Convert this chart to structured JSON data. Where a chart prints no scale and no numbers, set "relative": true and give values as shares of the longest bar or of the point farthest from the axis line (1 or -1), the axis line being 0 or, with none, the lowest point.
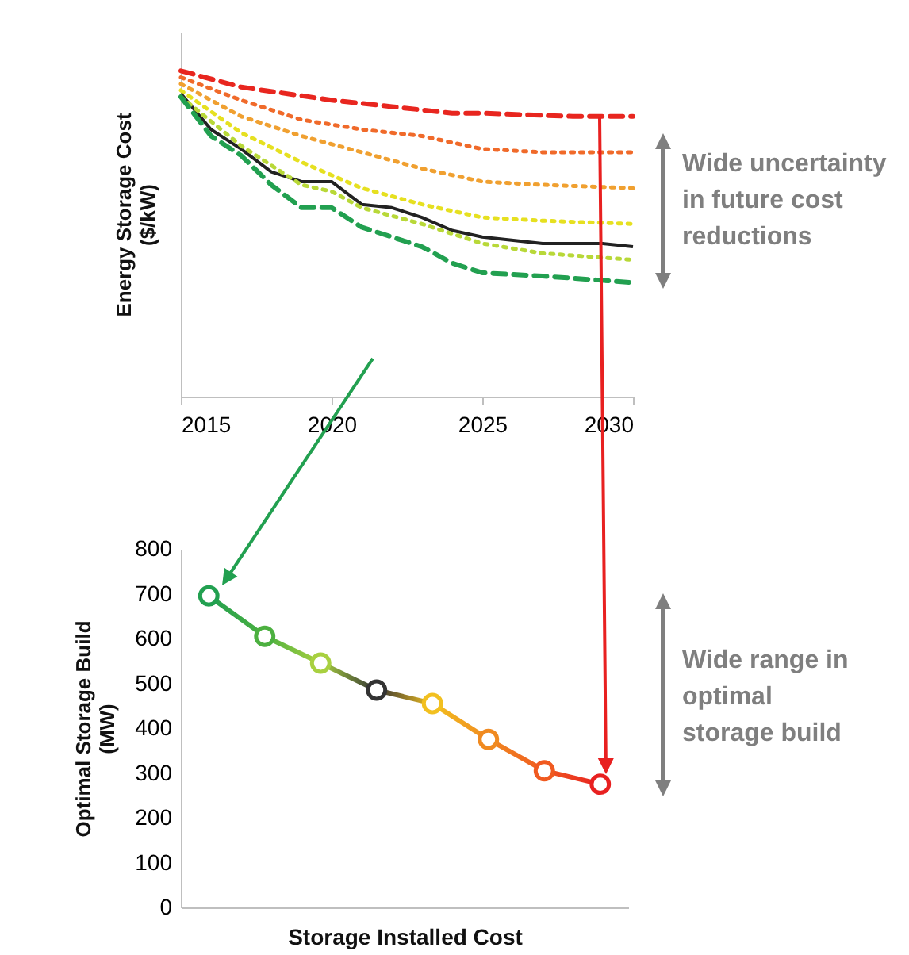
{
  "chart_data": [
    {
      "type": "line",
      "relative": true,
      "ylabel": "Energy Storage Cost ($/kW)",
      "xlim": [
        2015,
        2030
      ],
      "xticks": [
        2015,
        2020,
        2025,
        2030
      ],
      "tick_labels": "x",
      "grid": false,
      "annotations": [
        "Wide uncertainty in future cost reductions"
      ],
      "series": [
        {
          "color": "#e8261f",
          "line_style": "dashed",
          "x": [
            2015,
            2017,
            2020,
            2022,
            2024,
            2025,
            2028,
            2030
          ],
          "values": [
            1,
            0.95,
            0.91,
            0.89,
            0.87,
            0.87,
            0.86,
            0.86
          ]
        },
        {
          "color": "#f06a2a",
          "line_style": "dotted",
          "x": [
            2015,
            2017,
            2019,
            2021,
            2023,
            2025,
            2027,
            2030
          ],
          "values": [
            0.98,
            0.91,
            0.85,
            0.82,
            0.8,
            0.76,
            0.75,
            0.75
          ]
        },
        {
          "color": "#f0a030",
          "line_style": "dotted",
          "x": [
            2015,
            2017,
            2019,
            2021,
            2023,
            2025,
            2027,
            2030
          ],
          "values": [
            0.96,
            0.86,
            0.8,
            0.75,
            0.7,
            0.66,
            0.65,
            0.64
          ]
        },
        {
          "color": "#e6e020",
          "line_style": "dotted",
          "x": [
            2015,
            2017,
            2019,
            2021,
            2023,
            2025,
            2027,
            2030
          ],
          "values": [
            0.94,
            0.81,
            0.72,
            0.64,
            0.59,
            0.55,
            0.54,
            0.53
          ]
        },
        {
          "color": "#222222",
          "line_style": "solid",
          "x": [
            2015,
            2016,
            2017,
            2018,
            2019,
            2020,
            2021,
            2022,
            2023,
            2024,
            2025,
            2027,
            2029,
            2030
          ],
          "values": [
            0.93,
            0.82,
            0.76,
            0.69,
            0.66,
            0.66,
            0.59,
            0.58,
            0.55,
            0.51,
            0.49,
            0.47,
            0.47,
            0.46
          ]
        },
        {
          "color": "#b8d838",
          "line_style": "dotted",
          "x": [
            2015,
            2017,
            2019,
            2020,
            2021,
            2023,
            2025,
            2027,
            2030
          ],
          "values": [
            0.92,
            0.77,
            0.65,
            0.63,
            0.58,
            0.53,
            0.47,
            0.44,
            0.42
          ]
        },
        {
          "color": "#22a050",
          "line_style": "dashed",
          "x": [
            2015,
            2016,
            2017,
            2018,
            2019,
            2020,
            2021,
            2022,
            2023,
            2024,
            2025,
            2027,
            2030
          ],
          "values": [
            0.92,
            0.8,
            0.74,
            0.65,
            0.58,
            0.58,
            0.52,
            0.49,
            0.46,
            0.41,
            0.38,
            0.37,
            0.35
          ]
        }
      ]
    },
    {
      "type": "line",
      "marker": "circle",
      "line_style": "solid",
      "xlabel": "Storage Installed Cost",
      "ylabel": "Optimal Storage Build (MW)",
      "ylim": [
        0,
        800
      ],
      "yticks": [
        0,
        100,
        200,
        300,
        400,
        500,
        600,
        700,
        800
      ],
      "tick_labels": "y",
      "grid": false,
      "annotations": [
        "Wide range in optimal storage build"
      ],
      "categories": [
        null,
        null,
        null,
        null,
        null,
        null,
        null,
        null
      ],
      "series": [
        {
          "colors": [
            "#22a050",
            "#4cb040",
            "#a8d040",
            "#333333",
            "#f2c020",
            "#f08a20",
            "#f05a20",
            "#e82020"
          ],
          "values": [
            695,
            605,
            545,
            485,
            455,
            375,
            305,
            275
          ]
        }
      ]
    }
  ]
}
